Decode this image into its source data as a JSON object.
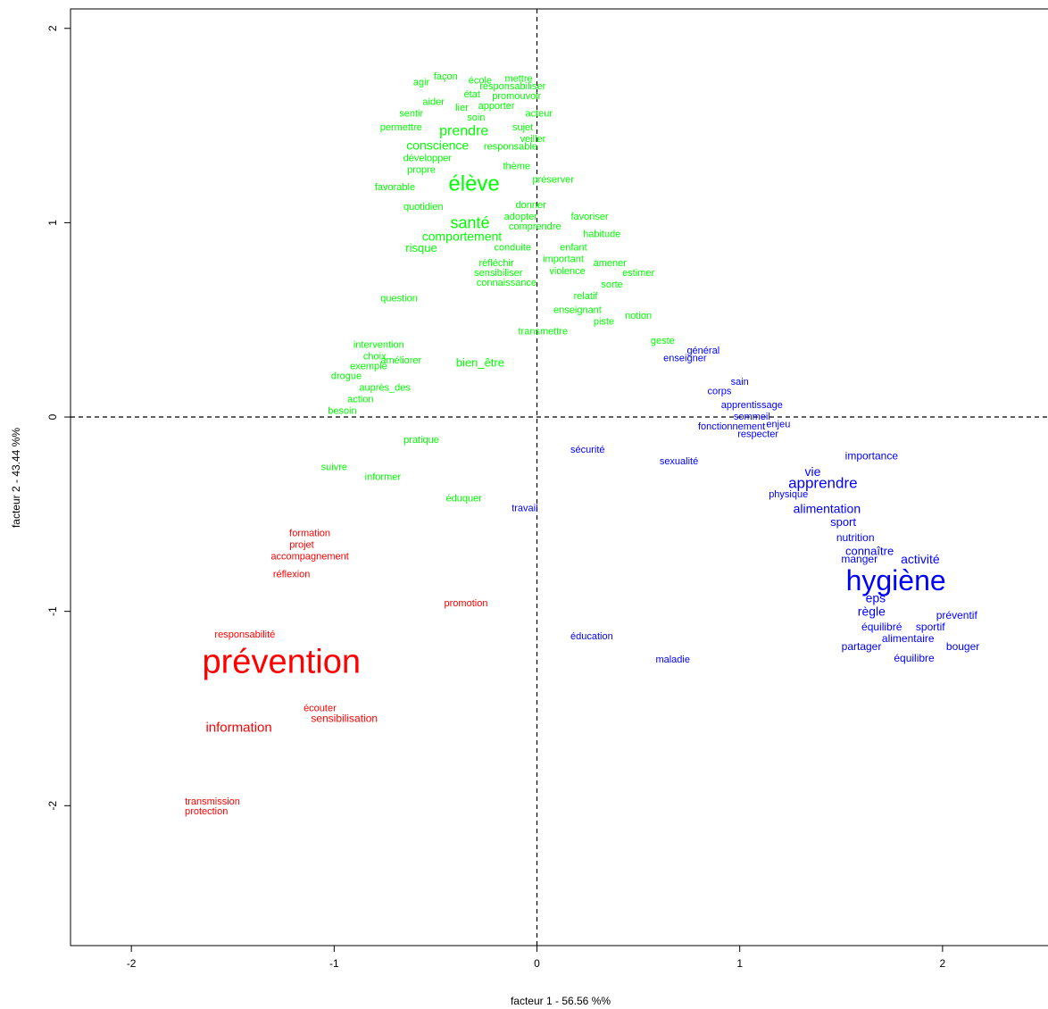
{
  "chart_data": {
    "type": "scatter",
    "xlabel": "facteur  1  - 56.56 %%",
    "ylabel": "facteur  2  - 43.44 %%",
    "xlim": [
      -2.3,
      2.52
    ],
    "ylim": [
      -2.72,
      2.1
    ],
    "xticks": [
      -2,
      -1,
      0,
      1,
      2
    ],
    "yticks": [
      -2,
      -1,
      0,
      1,
      2
    ],
    "grid": false,
    "reference_lines": {
      "x": 0,
      "y": 0,
      "style": "dashed"
    },
    "colors": {
      "class1": "#00ff00",
      "class2": "#0000ff",
      "class3": "#ff0000"
    },
    "series": [
      {
        "color": "#00ff00",
        "points": [
          {
            "label": "agir",
            "x": -0.57,
            "y": 1.72,
            "size": 11
          },
          {
            "label": "façon",
            "x": -0.45,
            "y": 1.75,
            "size": 11
          },
          {
            "label": "école",
            "x": -0.28,
            "y": 1.73,
            "size": 11
          },
          {
            "label": "mettre",
            "x": -0.09,
            "y": 1.74,
            "size": 11
          },
          {
            "label": "responsabiliser",
            "x": -0.12,
            "y": 1.7,
            "size": 11
          },
          {
            "label": "état",
            "x": -0.32,
            "y": 1.66,
            "size": 11
          },
          {
            "label": "promouvoir",
            "x": -0.1,
            "y": 1.65,
            "size": 11
          },
          {
            "label": "aider",
            "x": -0.51,
            "y": 1.62,
            "size": 11
          },
          {
            "label": "lier",
            "x": -0.37,
            "y": 1.59,
            "size": 11
          },
          {
            "label": "apporter",
            "x": -0.2,
            "y": 1.6,
            "size": 11
          },
          {
            "label": "sentir",
            "x": -0.62,
            "y": 1.56,
            "size": 11
          },
          {
            "label": "soin",
            "x": -0.3,
            "y": 1.54,
            "size": 11
          },
          {
            "label": "acteur",
            "x": 0.01,
            "y": 1.56,
            "size": 11
          },
          {
            "label": "permettre",
            "x": -0.67,
            "y": 1.49,
            "size": 11
          },
          {
            "label": "sujet",
            "x": -0.07,
            "y": 1.49,
            "size": 11
          },
          {
            "label": "prendre",
            "x": -0.36,
            "y": 1.47,
            "size": 16
          },
          {
            "label": "veiller",
            "x": -0.02,
            "y": 1.43,
            "size": 11
          },
          {
            "label": "conscience",
            "x": -0.49,
            "y": 1.4,
            "size": 14
          },
          {
            "label": "responsable",
            "x": -0.13,
            "y": 1.39,
            "size": 11
          },
          {
            "label": "développer",
            "x": -0.54,
            "y": 1.33,
            "size": 11
          },
          {
            "label": "propre",
            "x": -0.57,
            "y": 1.27,
            "size": 11
          },
          {
            "label": "thème",
            "x": -0.1,
            "y": 1.29,
            "size": 11
          },
          {
            "label": "élève",
            "x": -0.31,
            "y": 1.2,
            "size": 24
          },
          {
            "label": "préserver",
            "x": 0.08,
            "y": 1.22,
            "size": 11
          },
          {
            "label": "favorable",
            "x": -0.7,
            "y": 1.18,
            "size": 11
          },
          {
            "label": "quotidien",
            "x": -0.56,
            "y": 1.08,
            "size": 11
          },
          {
            "label": "donner",
            "x": -0.03,
            "y": 1.09,
            "size": 11
          },
          {
            "label": "santé",
            "x": -0.33,
            "y": 1.0,
            "size": 18
          },
          {
            "label": "adopter",
            "x": -0.08,
            "y": 1.03,
            "size": 11
          },
          {
            "label": "favoriser",
            "x": 0.26,
            "y": 1.03,
            "size": 11
          },
          {
            "label": "comprendre",
            "x": -0.01,
            "y": 0.98,
            "size": 11
          },
          {
            "label": "comportement",
            "x": -0.37,
            "y": 0.93,
            "size": 14
          },
          {
            "label": "habitude",
            "x": 0.32,
            "y": 0.94,
            "size": 11
          },
          {
            "label": "risque",
            "x": -0.57,
            "y": 0.87,
            "size": 13
          },
          {
            "label": "conduite",
            "x": -0.12,
            "y": 0.87,
            "size": 11
          },
          {
            "label": "enfant",
            "x": 0.18,
            "y": 0.87,
            "size": 11
          },
          {
            "label": "important",
            "x": 0.13,
            "y": 0.81,
            "size": 11
          },
          {
            "label": "amener",
            "x": 0.36,
            "y": 0.79,
            "size": 11
          },
          {
            "label": "réfléchir",
            "x": -0.2,
            "y": 0.79,
            "size": 11
          },
          {
            "label": "violence",
            "x": 0.15,
            "y": 0.75,
            "size": 11
          },
          {
            "label": "estimer",
            "x": 0.5,
            "y": 0.74,
            "size": 11
          },
          {
            "label": "sensibiliser",
            "x": -0.19,
            "y": 0.74,
            "size": 11
          },
          {
            "label": "connaissance",
            "x": -0.15,
            "y": 0.69,
            "size": 11
          },
          {
            "label": "sorte",
            "x": 0.37,
            "y": 0.68,
            "size": 11
          },
          {
            "label": "question",
            "x": -0.68,
            "y": 0.61,
            "size": 11
          },
          {
            "label": "relatif",
            "x": 0.24,
            "y": 0.62,
            "size": 11
          },
          {
            "label": "enseignant",
            "x": 0.2,
            "y": 0.55,
            "size": 11
          },
          {
            "label": "notion",
            "x": 0.5,
            "y": 0.52,
            "size": 11
          },
          {
            "label": "piste",
            "x": 0.33,
            "y": 0.49,
            "size": 11
          },
          {
            "label": "transmettre",
            "x": 0.03,
            "y": 0.44,
            "size": 11
          },
          {
            "label": "geste",
            "x": 0.62,
            "y": 0.39,
            "size": 11
          },
          {
            "label": "intervention",
            "x": -0.78,
            "y": 0.37,
            "size": 11
          },
          {
            "label": "choix",
            "x": -0.8,
            "y": 0.31,
            "size": 11
          },
          {
            "label": "exemple",
            "x": -0.83,
            "y": 0.26,
            "size": 11
          },
          {
            "label": "améliorer",
            "x": -0.67,
            "y": 0.29,
            "size": 11
          },
          {
            "label": "bien_être",
            "x": -0.28,
            "y": 0.28,
            "size": 13
          },
          {
            "label": "drogue",
            "x": -0.94,
            "y": 0.21,
            "size": 11
          },
          {
            "label": "auprès_des",
            "x": -0.75,
            "y": 0.15,
            "size": 11
          },
          {
            "label": "action",
            "x": -0.87,
            "y": 0.09,
            "size": 11
          },
          {
            "label": "besoin",
            "x": -0.96,
            "y": 0.03,
            "size": 11
          },
          {
            "label": "pratique",
            "x": -0.57,
            "y": -0.12,
            "size": 11
          },
          {
            "label": "suivre",
            "x": -1.0,
            "y": -0.26,
            "size": 11
          },
          {
            "label": "informer",
            "x": -0.76,
            "y": -0.31,
            "size": 11
          },
          {
            "label": "éduquer",
            "x": -0.36,
            "y": -0.42,
            "size": 11
          }
        ]
      },
      {
        "color": "#0000ff",
        "points": [
          {
            "label": "général",
            "x": 0.82,
            "y": 0.34,
            "size": 11
          },
          {
            "label": "enseigner",
            "x": 0.73,
            "y": 0.3,
            "size": 11
          },
          {
            "label": "sain",
            "x": 1.0,
            "y": 0.18,
            "size": 11
          },
          {
            "label": "corps",
            "x": 0.9,
            "y": 0.13,
            "size": 11
          },
          {
            "label": "apprentissage",
            "x": 1.06,
            "y": 0.06,
            "size": 11
          },
          {
            "label": "sommeil",
            "x": 1.06,
            "y": 0.0,
            "size": 11
          },
          {
            "label": "enjeu",
            "x": 1.19,
            "y": -0.04,
            "size": 11
          },
          {
            "label": "fonctionnement",
            "x": 0.96,
            "y": -0.05,
            "size": 11
          },
          {
            "label": "respecter",
            "x": 1.09,
            "y": -0.09,
            "size": 11
          },
          {
            "label": "sécurité",
            "x": 0.25,
            "y": -0.17,
            "size": 11
          },
          {
            "label": "importance",
            "x": 1.65,
            "y": -0.2,
            "size": 12
          },
          {
            "label": "sexualité",
            "x": 0.7,
            "y": -0.23,
            "size": 11
          },
          {
            "label": "vie",
            "x": 1.36,
            "y": -0.28,
            "size": 14
          },
          {
            "label": "apprendre",
            "x": 1.41,
            "y": -0.34,
            "size": 17
          },
          {
            "label": "physique",
            "x": 1.24,
            "y": -0.4,
            "size": 11
          },
          {
            "label": "alimentation",
            "x": 1.43,
            "y": -0.47,
            "size": 14
          },
          {
            "label": "travail",
            "x": -0.06,
            "y": -0.47,
            "size": 11
          },
          {
            "label": "sport",
            "x": 1.51,
            "y": -0.54,
            "size": 13
          },
          {
            "label": "nutrition",
            "x": 1.57,
            "y": -0.62,
            "size": 12
          },
          {
            "label": "connaître",
            "x": 1.64,
            "y": -0.69,
            "size": 13
          },
          {
            "label": "manger",
            "x": 1.59,
            "y": -0.73,
            "size": 12
          },
          {
            "label": "activité",
            "x": 1.89,
            "y": -0.73,
            "size": 14
          },
          {
            "label": "hygiène",
            "x": 1.77,
            "y": -0.84,
            "size": 32
          },
          {
            "label": "eps",
            "x": 1.67,
            "y": -0.93,
            "size": 14
          },
          {
            "label": "règle",
            "x": 1.65,
            "y": -1.0,
            "size": 14
          },
          {
            "label": "préventif",
            "x": 2.07,
            "y": -1.02,
            "size": 12
          },
          {
            "label": "équilibré",
            "x": 1.7,
            "y": -1.08,
            "size": 12
          },
          {
            "label": "sportif",
            "x": 1.94,
            "y": -1.08,
            "size": 12
          },
          {
            "label": "alimentaire",
            "x": 1.83,
            "y": -1.14,
            "size": 12
          },
          {
            "label": "partager",
            "x": 1.6,
            "y": -1.18,
            "size": 12
          },
          {
            "label": "bouger",
            "x": 2.1,
            "y": -1.18,
            "size": 12
          },
          {
            "label": "équilibre",
            "x": 1.86,
            "y": -1.24,
            "size": 12
          },
          {
            "label": "éducation",
            "x": 0.27,
            "y": -1.13,
            "size": 11
          },
          {
            "label": "maladie",
            "x": 0.67,
            "y": -1.25,
            "size": 11
          }
        ]
      },
      {
        "color": "#ff0000",
        "points": [
          {
            "label": "formation",
            "x": -1.12,
            "y": -0.6,
            "size": 11
          },
          {
            "label": "projet",
            "x": -1.16,
            "y": -0.66,
            "size": 11
          },
          {
            "label": "accompagnement",
            "x": -1.12,
            "y": -0.72,
            "size": 11
          },
          {
            "label": "réflexion",
            "x": -1.21,
            "y": -0.81,
            "size": 11
          },
          {
            "label": "promotion",
            "x": -0.35,
            "y": -0.96,
            "size": 11
          },
          {
            "label": "responsabilité",
            "x": -1.44,
            "y": -1.12,
            "size": 11
          },
          {
            "label": "prévention",
            "x": -1.26,
            "y": -1.26,
            "size": 38
          },
          {
            "label": "écouter",
            "x": -1.07,
            "y": -1.5,
            "size": 11
          },
          {
            "label": "sensibilisation",
            "x": -0.95,
            "y": -1.55,
            "size": 12
          },
          {
            "label": "information",
            "x": -1.47,
            "y": -1.6,
            "size": 15
          },
          {
            "label": "transmission",
            "x": -1.6,
            "y": -1.98,
            "size": 11
          },
          {
            "label": "protection",
            "x": -1.63,
            "y": -2.03,
            "size": 11
          }
        ]
      }
    ]
  }
}
